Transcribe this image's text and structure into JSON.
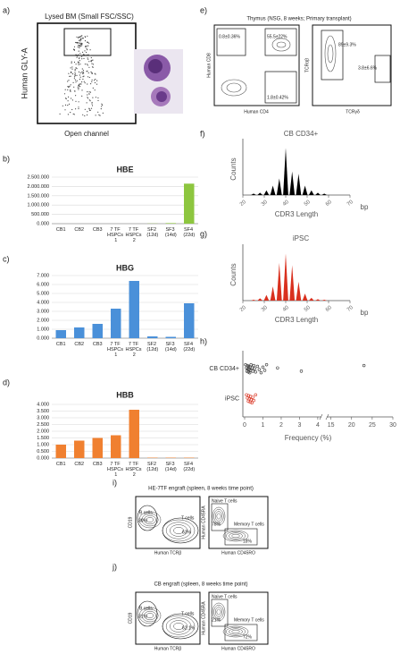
{
  "panel_labels": [
    "a)",
    "b)",
    "c)",
    "d)",
    "e)",
    "f)",
    "g)",
    "h)",
    "i)",
    "j)"
  ],
  "panel_a": {
    "title": "Lysed BM (Small FSC/SSC)",
    "y_label": "Human GLY-A",
    "x_label": "Open channel"
  },
  "panel_e": {
    "title": "Thymus (NSG, 8 weeks; Primary transplant)",
    "plot1": {
      "y_label": "Human CD8",
      "x_label": "Human CD4",
      "gates": [
        "0.8±0.36%",
        "55.5±22%",
        "1.8±0.42%"
      ]
    },
    "plot2": {
      "y_label": "TCRαβ",
      "x_label": "TCRγδ",
      "gates": [
        "89±9.3%",
        "3.8±6.6%"
      ]
    }
  },
  "panel_i": {
    "title": "HE-7TF engraft (spleen, 8 weeks time point)",
    "plot1": {
      "y_label": "CD19",
      "x_label": "Human TCRβ",
      "gates": [
        "B cells",
        "30%",
        "T cells",
        "63%"
      ]
    },
    "plot2": {
      "y_label": "Human CD45RA",
      "x_label": "Human CD45RO",
      "gates": [
        "Naive T cells",
        "78%",
        "Memory T cells",
        "18%"
      ]
    }
  },
  "panel_j": {
    "title": "CB engraft (spleen, 8 weeks time point)",
    "plot1": {
      "y_label": "CD19",
      "x_label": "Human TCRβ",
      "gates": [
        "B cells",
        "31%",
        "T cells",
        "62.1%"
      ]
    },
    "plot2": {
      "y_label": "Human CD45RA",
      "x_label": "Human CD45RO",
      "gates": [
        "Naive T cells",
        "21%",
        "Memory T cells",
        "72%"
      ]
    }
  },
  "chart_data": [
    {
      "type": "bar",
      "title": "HBE",
      "color": "#8dc63f",
      "grid": true,
      "categories": [
        "CB1",
        "CB2",
        "CB3",
        "7 TF HSPCs 1",
        "7 TF HSPCs 2",
        "SF2 (12d)",
        "SF3 (14d)",
        "SF4 (22d)"
      ],
      "values": [
        0,
        0,
        0,
        0,
        0,
        10000,
        30000,
        2150000
      ],
      "ylim": [
        0,
        2500000
      ],
      "yticks": [
        {
          "value": 0,
          "label": "0.000"
        },
        {
          "value": 500000,
          "label": "500.000"
        },
        {
          "value": 1000000,
          "label": "1.000.000"
        },
        {
          "value": 1500000,
          "label": "1.500.000"
        },
        {
          "value": 2000000,
          "label": "2.000.000"
        },
        {
          "value": 2500000,
          "label": "2.500.000"
        }
      ]
    },
    {
      "type": "bar",
      "title": "HBG",
      "color": "#4a90d9",
      "grid": true,
      "categories": [
        "CB1",
        "CB2",
        "CB3",
        "7 TF HSPCs 1",
        "7 TF HSPCs 2",
        "SF2 (12d)",
        "SF3 (14d)",
        "SF4 (22d)"
      ],
      "values": [
        0.9,
        1.2,
        1.6,
        3.3,
        6.4,
        0.2,
        0.15,
        3.9
      ],
      "ylim": [
        0,
        7
      ],
      "yticks": [
        {
          "value": 0,
          "label": "0.000"
        },
        {
          "value": 1,
          "label": "1.000"
        },
        {
          "value": 2,
          "label": "2.000"
        },
        {
          "value": 3,
          "label": "3.000"
        },
        {
          "value": 4,
          "label": "4.000"
        },
        {
          "value": 5,
          "label": "5.000"
        },
        {
          "value": 6,
          "label": "6.000"
        },
        {
          "value": 7,
          "label": "7.000"
        }
      ]
    },
    {
      "type": "bar",
      "title": "HBB",
      "color": "#f08030",
      "grid": true,
      "categories": [
        "CB1",
        "CB2",
        "CB3",
        "7 TF HSPCs 1",
        "7 TF HSPCs 2",
        "SF2 (12d)",
        "SF3 (14d)",
        "SF4 (22d)"
      ],
      "values": [
        1.0,
        1.3,
        1.5,
        1.7,
        3.6,
        0.03,
        0.03,
        0.03
      ],
      "ylim": [
        0,
        4
      ],
      "yticks": [
        {
          "value": 0,
          "label": "0.000"
        },
        {
          "value": 0.5,
          "label": "0.500"
        },
        {
          "value": 1,
          "label": "1.000"
        },
        {
          "value": 1.5,
          "label": "1.500"
        },
        {
          "value": 2,
          "label": "2.000"
        },
        {
          "value": 2.5,
          "label": "2.500"
        },
        {
          "value": 3,
          "label": "3.000"
        },
        {
          "value": 3.5,
          "label": "3.500"
        },
        {
          "value": 4,
          "label": "4.000"
        }
      ]
    },
    {
      "type": "spectratype",
      "title": "CB CD34+",
      "color": "#000000",
      "xlabel": "CDR3 Length",
      "ylabel": "Counts",
      "unit": "bp",
      "x": [
        25,
        28,
        31,
        34,
        37,
        40,
        43,
        46,
        49,
        52,
        55,
        58
      ],
      "values": [
        0.03,
        0.05,
        0.1,
        0.2,
        0.35,
        1.0,
        0.5,
        0.45,
        0.2,
        0.1,
        0.05,
        0.03
      ],
      "xlim": [
        20,
        70
      ],
      "xticks": [
        20,
        30,
        40,
        50,
        60,
        70
      ],
      "ylim": [
        0,
        1.1
      ]
    },
    {
      "type": "spectratype",
      "title": "iPSC",
      "color": "#d9301e",
      "xlabel": "CDR3 Length",
      "ylabel": "Counts",
      "unit": "bp",
      "x": [
        25,
        28,
        31,
        34,
        37,
        40,
        43,
        46,
        49,
        52,
        55,
        58
      ],
      "values": [
        0.02,
        0.05,
        0.12,
        0.3,
        0.8,
        1.0,
        0.75,
        0.4,
        0.15,
        0.06,
        0.03,
        0.02
      ],
      "xlim": [
        20,
        70
      ],
      "xticks": [
        20,
        30,
        40,
        50,
        60,
        70
      ],
      "ylim": [
        0,
        1.1
      ]
    },
    {
      "type": "strip",
      "xlabel": "Frequency (%)",
      "series": [
        {
          "name": "CB CD34+",
          "color": "#333333",
          "values": [
            0.05,
            0.1,
            0.12,
            0.15,
            0.18,
            0.2,
            0.22,
            0.25,
            0.28,
            0.3,
            0.32,
            0.35,
            0.4,
            0.45,
            0.5,
            0.55,
            0.6,
            0.7,
            0.8,
            0.9,
            1.0,
            1.1,
            1.2,
            1.8,
            3.1,
            23
          ]
        },
        {
          "name": "iPSC",
          "color": "#d9301e",
          "values": [
            0.1,
            0.15,
            0.2,
            0.22,
            0.25,
            0.3,
            0.32,
            0.35,
            0.4,
            0.45,
            0.5,
            0.6
          ]
        }
      ],
      "xlim": [
        0,
        4.2
      ],
      "xticks": [
        0,
        1,
        2,
        3,
        4
      ],
      "x2lim": [
        14,
        30
      ],
      "x2ticks": [
        15,
        20,
        25,
        30
      ]
    }
  ]
}
